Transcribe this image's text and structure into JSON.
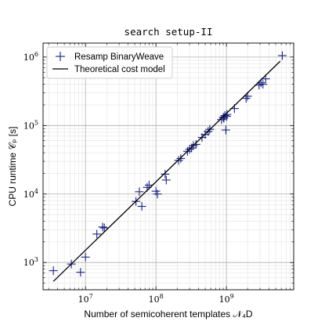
{
  "chart_data": {
    "type": "scatter",
    "title": "search setup-II",
    "xlabel": "Number of semicoherent templates 𝒩₄D",
    "ylabel": "CPU runtime 𝒞ₚ [s]",
    "xscale": "log",
    "yscale": "log",
    "xlim": [
      2500000,
      9000000000
    ],
    "ylim": [
      400,
      1600000
    ],
    "grid": true,
    "legend_position": "top-left",
    "x_ticks": [
      {
        "value": 10000000,
        "base": "10",
        "exp": "7"
      },
      {
        "value": 100000000,
        "base": "10",
        "exp": "8"
      },
      {
        "value": 1000000000,
        "base": "10",
        "exp": "9"
      }
    ],
    "y_ticks": [
      {
        "value": 1000,
        "base": "10",
        "exp": "3"
      },
      {
        "value": 10000,
        "base": "10",
        "exp": "4"
      },
      {
        "value": 100000,
        "base": "10",
        "exp": "5"
      },
      {
        "value": 1000000,
        "base": "10",
        "exp": "6"
      }
    ],
    "series": [
      {
        "name": "Resamp BinaryWeave",
        "kind": "scatter",
        "marker": "plus",
        "color": "#1a237e",
        "points": [
          [
            3500000,
            760
          ],
          [
            6300000,
            950
          ],
          [
            8500000,
            720
          ],
          [
            10000000,
            1200
          ],
          [
            14500000,
            2600
          ],
          [
            17500000,
            3300
          ],
          [
            18500000,
            3200
          ],
          [
            52000000,
            7800
          ],
          [
            58000000,
            10800
          ],
          [
            63000000,
            6600
          ],
          [
            75000000,
            12500
          ],
          [
            80000000,
            13500
          ],
          [
            100000000,
            11000
          ],
          [
            105000000,
            10000
          ],
          [
            135000000,
            19500
          ],
          [
            140000000,
            16000
          ],
          [
            210000000,
            31000
          ],
          [
            225000000,
            33000
          ],
          [
            280000000,
            42000
          ],
          [
            300000000,
            45000
          ],
          [
            320000000,
            47000
          ],
          [
            340000000,
            51000
          ],
          [
            370000000,
            53000
          ],
          [
            450000000,
            67000
          ],
          [
            500000000,
            74000
          ],
          [
            550000000,
            82000
          ],
          [
            580000000,
            88000
          ],
          [
            850000000,
            122000
          ],
          [
            900000000,
            132000
          ],
          [
            920000000,
            128000
          ],
          [
            950000000,
            140000
          ],
          [
            980000000,
            86000
          ],
          [
            1010000000,
            136000
          ],
          [
            1020000000,
            145000
          ],
          [
            1300000000,
            177000
          ],
          [
            1900000000,
            250000
          ],
          [
            2000000000,
            268000
          ],
          [
            2900000000,
            390000
          ],
          [
            3100000000,
            420000
          ],
          [
            3300000000,
            400000
          ],
          [
            3600000000,
            480000
          ],
          [
            6200000000,
            1050000
          ]
        ]
      },
      {
        "name": "Theoretical cost model",
        "kind": "line",
        "color": "#000000",
        "points": [
          [
            3500000,
            530
          ],
          [
            5800000000,
            870000
          ]
        ]
      }
    ]
  }
}
